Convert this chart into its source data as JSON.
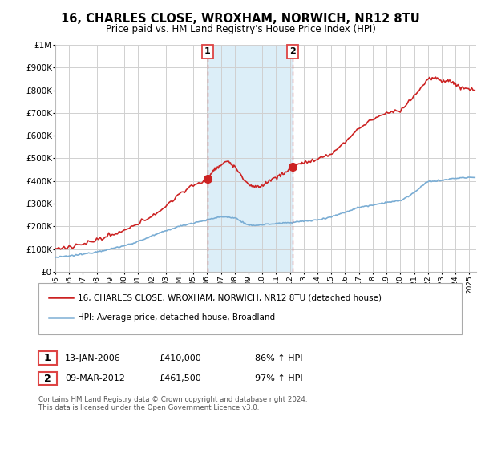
{
  "title": "16, CHARLES CLOSE, WROXHAM, NORWICH, NR12 8TU",
  "subtitle": "Price paid vs. HM Land Registry's House Price Index (HPI)",
  "legend_line1": "16, CHARLES CLOSE, WROXHAM, NORWICH, NR12 8TU (detached house)",
  "legend_line2": "HPI: Average price, detached house, Broadland",
  "footnote": "Contains HM Land Registry data © Crown copyright and database right 2024.\nThis data is licensed under the Open Government Licence v3.0.",
  "transaction1_label": "1",
  "transaction1_date": "13-JAN-2006",
  "transaction1_price": "£410,000",
  "transaction1_hpi": "86% ↑ HPI",
  "transaction1_year": 2006,
  "transaction1_day_of_year": 13,
  "transaction1_value": 410000,
  "transaction2_label": "2",
  "transaction2_date": "09-MAR-2012",
  "transaction2_price": "£461,500",
  "transaction2_hpi": "97% ↑ HPI",
  "transaction2_year": 2012,
  "transaction2_day_of_year": 68,
  "transaction2_value": 461500,
  "hpi_color": "#7aadd4",
  "price_color": "#cc2222",
  "shaded_color": "#dceef8",
  "vline_color": "#dd4444",
  "background_color": "#ffffff",
  "grid_color": "#d0d0d0",
  "ylim": [
    0,
    1000000
  ],
  "ytick_vals": [
    0,
    100000,
    200000,
    300000,
    400000,
    500000,
    600000,
    700000,
    800000,
    900000,
    1000000
  ],
  "ytick_labels": [
    "£0",
    "£100K",
    "£200K",
    "£300K",
    "£400K",
    "£500K",
    "£600K",
    "£700K",
    "£800K",
    "£900K",
    "£1M"
  ],
  "xlim_start": 1995.0,
  "xlim_end": 2025.5,
  "xtick_start": 1995,
  "xtick_end": 2025
}
